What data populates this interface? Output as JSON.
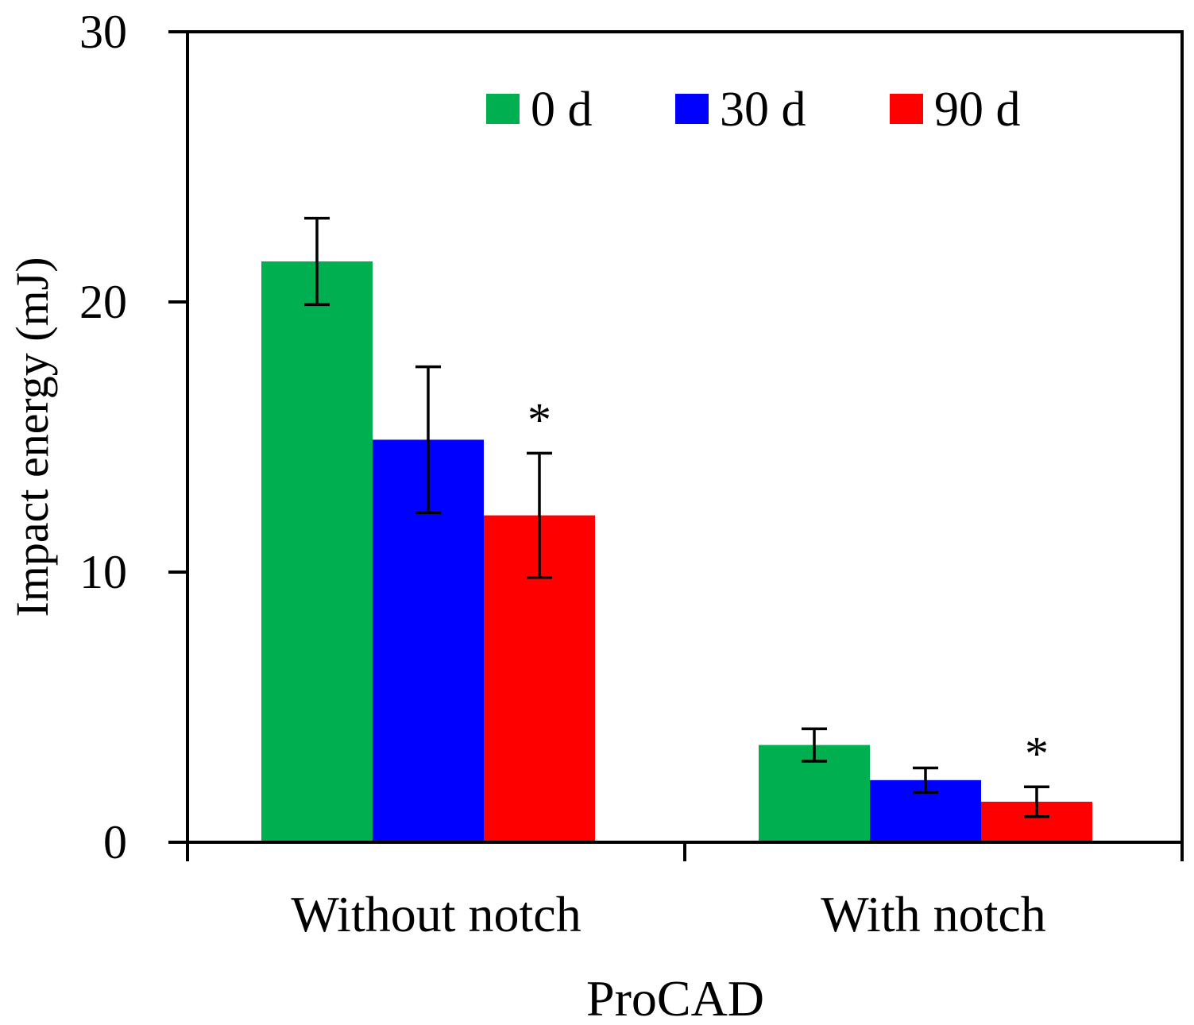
{
  "chart_data": {
    "type": "bar",
    "title": "",
    "xlabel": "ProCAD",
    "ylabel": "Impact energy (mJ)",
    "ylim": [
      0,
      30
    ],
    "yticks": [
      "0",
      "10",
      "20",
      "30"
    ],
    "ytick_values": [
      0,
      10,
      20,
      30
    ],
    "grid": false,
    "legend_position": "top-right",
    "categories": [
      "Without notch",
      "With notch"
    ],
    "series": [
      {
        "name": "0 d",
        "color": "#00b050",
        "values": [
          21.5,
          3.6
        ],
        "errors": [
          1.6,
          0.6
        ]
      },
      {
        "name": "30 d",
        "color": "#0000ff",
        "values": [
          14.9,
          2.3
        ],
        "errors": [
          2.7,
          0.45
        ]
      },
      {
        "name": "90 d",
        "color": "#ff0000",
        "values": [
          12.1,
          1.5
        ],
        "errors": [
          2.3,
          0.55
        ]
      }
    ],
    "annotations": [
      {
        "text": "*",
        "category": "Without notch",
        "series": "90 d"
      },
      {
        "text": "*",
        "category": "With notch",
        "series": "90 d"
      }
    ]
  }
}
